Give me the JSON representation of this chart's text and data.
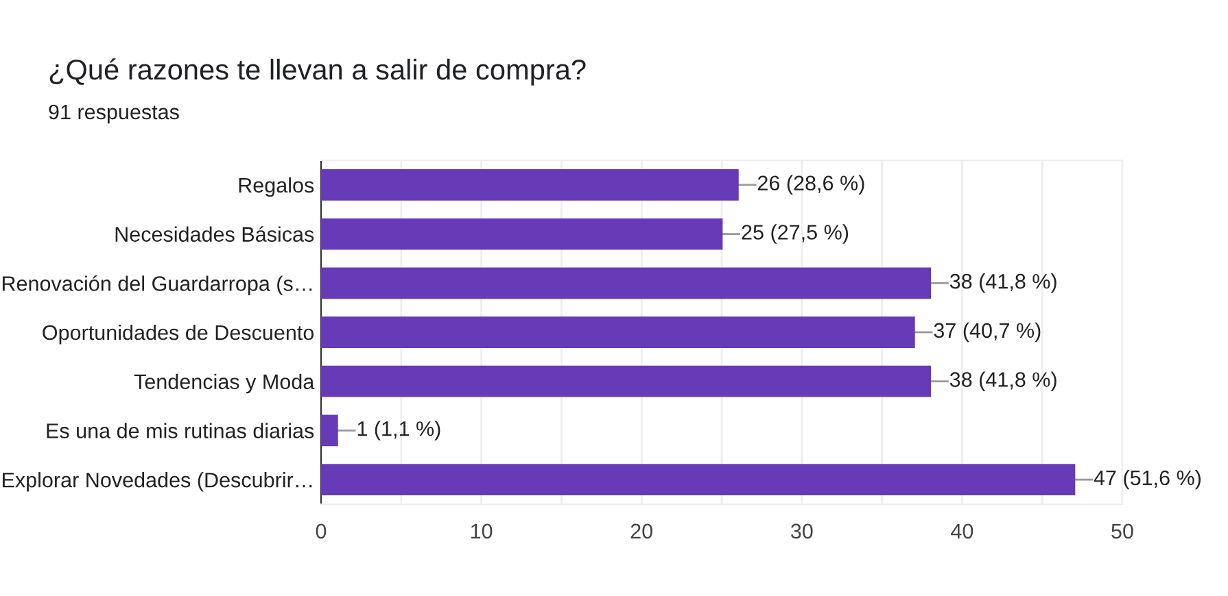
{
  "chart_data": {
    "type": "bar",
    "orientation": "horizontal",
    "title": "¿Qué razones te llevan a salir de compra?",
    "subtitle": "91 respuestas",
    "categories": [
      "Regalos",
      "Necesidades Básicas",
      "Renovación del Guardarropa (s…",
      "Oportunidades de Descuento",
      "Tendencias y Moda",
      "Es una de mis rutinas diarias",
      "Explorar Novedades (Descubrir…"
    ],
    "values": [
      26,
      25,
      38,
      37,
      38,
      1,
      47
    ],
    "value_labels": [
      "26 (28,6 %)",
      "25 (27,5 %)",
      "38 (41,8 %)",
      "37 (40,7 %)",
      "38 (41,8 %)",
      "1 (1,1 %)",
      "47 (51,6 %)"
    ],
    "color": "#673ab7",
    "xlim": [
      0,
      50
    ],
    "xticks": [
      0,
      {
        "value": 5,
        "label": null
      },
      10,
      {
        "value": 15,
        "label": null
      },
      20,
      {
        "value": 25,
        "label": null
      },
      30,
      {
        "value": 35,
        "label": null
      },
      40,
      {
        "value": 45,
        "label": null
      },
      50
    ],
    "grid": "x",
    "legend": false
  }
}
